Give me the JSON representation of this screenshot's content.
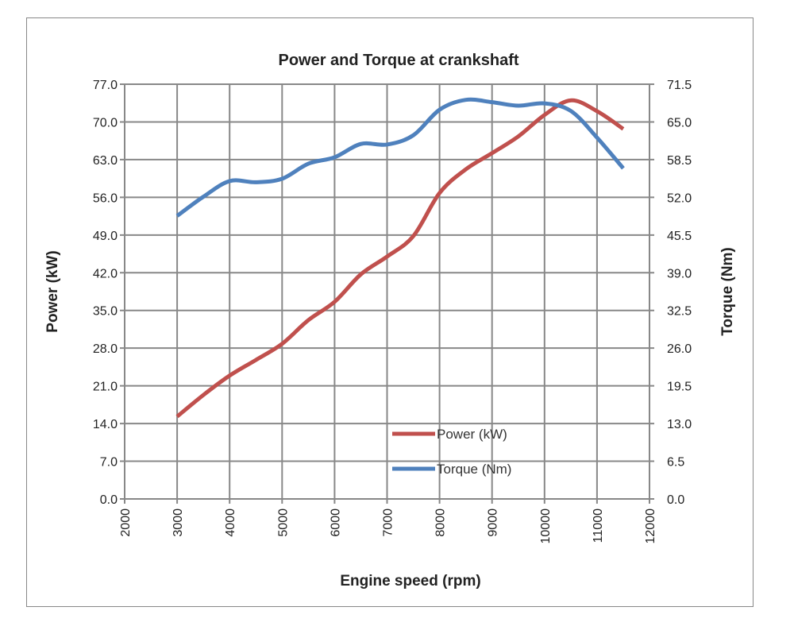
{
  "chart_data": {
    "type": "line",
    "title": "Power and Torque at crankshaft",
    "xlabel": "Engine speed (rpm)",
    "ylabel": "Power (kW)",
    "y2label": "Torque (Nm)",
    "xlim": [
      2000,
      12000
    ],
    "ylim": [
      0,
      77
    ],
    "y2lim": [
      0,
      71.5
    ],
    "grid": true,
    "legend_position": "center-right",
    "x_ticks": [
      "2000",
      "3000",
      "4000",
      "5000",
      "6000",
      "7000",
      "8000",
      "9000",
      "10000",
      "11000",
      "12000"
    ],
    "y_ticks": [
      "0.0",
      "7.0",
      "14.0",
      "21.0",
      "28.0",
      "35.0",
      "42.0",
      "49.0",
      "56.0",
      "63.0",
      "70.0",
      "77.0"
    ],
    "y2_ticks": [
      "0.0",
      "6.5",
      "13.0",
      "19.5",
      "26.0",
      "32.5",
      "39.0",
      "45.5",
      "52.0",
      "58.5",
      "65.0",
      "71.5"
    ],
    "x": [
      3000,
      3500,
      4000,
      4500,
      5000,
      5500,
      6000,
      6500,
      7000,
      7500,
      8000,
      8500,
      9000,
      9500,
      10000,
      10500,
      11000,
      11500
    ],
    "series": [
      {
        "name": "Power (kW)",
        "axis": "left",
        "color": "#C0504D",
        "values": [
          15.3,
          19.3,
          22.9,
          25.8,
          28.8,
          33.2,
          36.6,
          41.7,
          45.0,
          48.8,
          56.8,
          61.2,
          64.2,
          67.3,
          71.3,
          74.0,
          72.0,
          68.7
        ]
      },
      {
        "name": "Torque (Nm)",
        "axis": "right",
        "color": "#4F81BD",
        "values": [
          48.8,
          52.1,
          54.8,
          54.6,
          55.2,
          57.8,
          58.9,
          61.2,
          61.1,
          62.7,
          67.1,
          68.8,
          68.4,
          67.8,
          68.2,
          66.9,
          62.3,
          57.0
        ]
      }
    ]
  }
}
